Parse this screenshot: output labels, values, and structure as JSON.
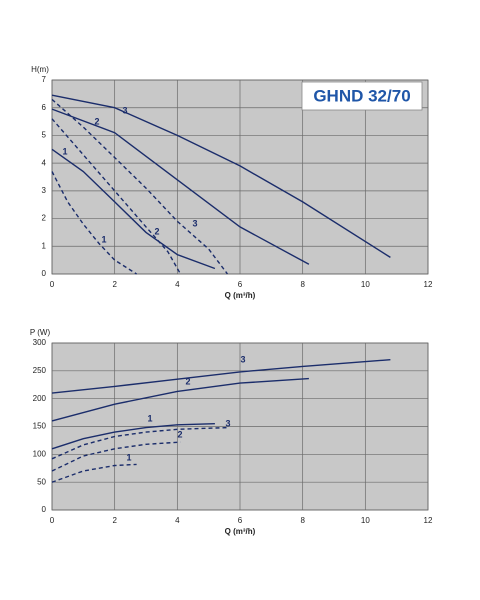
{
  "chart_data": [
    {
      "type": "line",
      "title": "GHND 32/70",
      "ylabel": "H(m)",
      "xlabel": "Q (m³/h)",
      "xlim": [
        0,
        12
      ],
      "ylim": [
        0,
        7
      ],
      "xticks": [
        0,
        2,
        4,
        6,
        8,
        10,
        12
      ],
      "yticks": [
        0,
        1,
        2,
        3,
        4,
        5,
        6,
        7
      ],
      "grid": true,
      "series": [
        {
          "name": "3",
          "color": "#1b2d6b",
          "style": "solid",
          "x": [
            0,
            2,
            4,
            6,
            8,
            10.8
          ],
          "values": [
            6.45,
            6.0,
            5.0,
            3.9,
            2.6,
            0.6
          ]
        },
        {
          "name": "2",
          "color": "#1b2d6b",
          "style": "solid",
          "x": [
            0,
            2,
            4,
            6,
            8.2
          ],
          "values": [
            5.95,
            5.1,
            3.4,
            1.7,
            0.35
          ]
        },
        {
          "name": "1",
          "color": "#1b2d6b",
          "style": "solid",
          "x": [
            0,
            1,
            2,
            3,
            4,
            5.2
          ],
          "values": [
            4.5,
            3.7,
            2.6,
            1.5,
            0.7,
            0.2
          ]
        },
        {
          "name": "3",
          "color": "#1b2d6b",
          "style": "dashed",
          "x": [
            0,
            1,
            2,
            3,
            4,
            5,
            5.6
          ],
          "values": [
            6.3,
            5.3,
            4.2,
            3.1,
            1.9,
            0.9,
            0
          ]
        },
        {
          "name": "2",
          "color": "#1b2d6b",
          "style": "dashed",
          "x": [
            0,
            1,
            2,
            3,
            3.7,
            4.1
          ],
          "values": [
            5.6,
            4.3,
            3.0,
            1.7,
            0.8,
            0
          ]
        },
        {
          "name": "1",
          "color": "#1b2d6b",
          "style": "dashed",
          "x": [
            0,
            0.5,
            1,
            1.5,
            2,
            2.7
          ],
          "values": [
            3.7,
            2.6,
            1.8,
            1.1,
            0.5,
            0
          ]
        }
      ]
    },
    {
      "type": "line",
      "ylabel": "P (W)",
      "xlabel": "Q (m³/h)",
      "xlim": [
        0,
        12
      ],
      "ylim": [
        0,
        300
      ],
      "xticks": [
        0,
        2,
        4,
        6,
        8,
        10,
        12
      ],
      "yticks": [
        0,
        50,
        100,
        150,
        200,
        250,
        300
      ],
      "grid": true,
      "series": [
        {
          "name": "3",
          "color": "#1b2d6b",
          "style": "solid",
          "x": [
            0,
            2,
            4,
            6,
            8,
            10.8
          ],
          "values": [
            210,
            222,
            235,
            248,
            258,
            270
          ]
        },
        {
          "name": "2",
          "color": "#1b2d6b",
          "style": "solid",
          "x": [
            0,
            2,
            4,
            6,
            8.2
          ],
          "values": [
            160,
            190,
            213,
            228,
            236
          ]
        },
        {
          "name": "1",
          "color": "#1b2d6b",
          "style": "solid",
          "x": [
            0,
            1,
            2,
            3,
            4,
            5.2
          ],
          "values": [
            110,
            128,
            140,
            148,
            153,
            155
          ]
        },
        {
          "name": "3",
          "color": "#1b2d6b",
          "style": "dashed",
          "x": [
            0,
            1,
            2,
            3,
            4,
            5.6
          ],
          "values": [
            92,
            117,
            132,
            140,
            145,
            148
          ]
        },
        {
          "name": "2",
          "color": "#1b2d6b",
          "style": "dashed",
          "x": [
            0,
            1,
            2,
            3,
            4.1
          ],
          "values": [
            70,
            97,
            110,
            118,
            122
          ]
        },
        {
          "name": "1",
          "color": "#1b2d6b",
          "style": "dashed",
          "x": [
            0,
            1,
            2,
            2.7
          ],
          "values": [
            50,
            70,
            80,
            82
          ]
        }
      ]
    }
  ]
}
